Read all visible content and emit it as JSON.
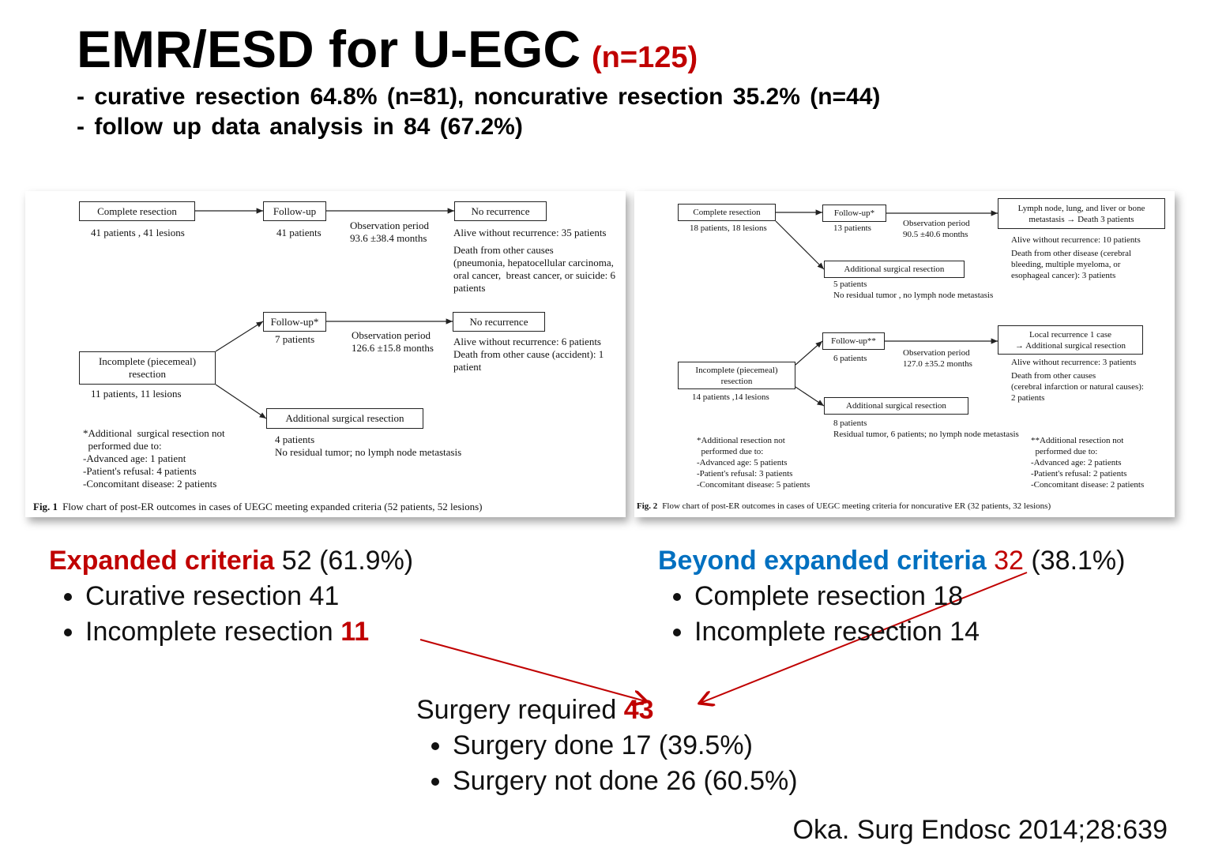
{
  "header": {
    "title": "EMR/ESD for U-EGC",
    "title_note": "(n=125)",
    "lines": [
      "- curative resection 64.8% (n=81), noncurative resection 35.2% (n=44)",
      "- follow up data analysis in 84 (67.2%)"
    ]
  },
  "figures": [
    {
      "boxes": [
        [
          "Complete resection"
        ],
        [
          "Follow-up"
        ],
        [
          "No recurrence"
        ],
        [
          "Follow-up*"
        ],
        [
          "No recurrence"
        ],
        [
          "Incomplete (piecemeal)",
          "resection"
        ],
        [
          "Additional surgical resection"
        ]
      ],
      "notes": [
        [
          "41 patients , 41 lesions"
        ],
        [
          "41 patients"
        ],
        [
          "Observation period",
          "93.6 ±38.4 months"
        ],
        [
          "Alive without recurrence: 35 patients"
        ],
        [
          "Death from other causes",
          "(pneumonia, hepatocellular carcinoma,",
          "oral cancer,  breast cancer, or suicide: 6",
          "patients"
        ],
        [
          "7 patients"
        ],
        [
          "Observation period",
          "126.6 ±15.8 months"
        ],
        [
          "Alive without recurrence: 6 patients",
          "Death from other cause (accident): 1",
          "patient"
        ],
        [
          "11 patients, 11 lesions"
        ],
        [
          "4 patients",
          "No residual tumor; no lymph node metastasis"
        ],
        [
          "*Additional  surgical resection not",
          "  performed due to:",
          "-Advanced age: 1 patient",
          "-Patient's refusal: 4 patients",
          "-Concomitant disease: 2 patients"
        ]
      ],
      "caption": {
        "label": "Fig. 1",
        "text": "Flow chart of post-ER outcomes in cases of UEGC meeting expanded criteria (52 patients, 52 lesions)"
      }
    },
    {
      "boxes": [
        [
          "Complete resection"
        ],
        [
          "Follow-up*"
        ],
        [
          "Lymph node, lung, and liver or bone",
          "metastasis → Death 3 patients"
        ],
        [
          "Additional surgical resection"
        ],
        [
          "Follow-up**"
        ],
        [
          "Local recurrence 1 case",
          "→ Additional surgical resection"
        ],
        [
          "Incomplete (piecemeal)",
          "resection"
        ],
        [
          "Additional surgical resection"
        ]
      ],
      "notes": [
        [
          "18 patients, 18 lesions"
        ],
        [
          "13 patients"
        ],
        [
          "Observation period",
          "90.5 ±40.6 months"
        ],
        [
          "Alive without recurrence: 10 patients"
        ],
        [
          "Death from other disease (cerebral",
          "bleeding, multiple myeloma, or",
          "esophageal cancer): 3 patients"
        ],
        [
          "5 patients",
          "No residual tumor , no lymph node metastasis"
        ],
        [
          "6 patients"
        ],
        [
          "Observation period",
          "127.0 ±35.2 months"
        ],
        [
          "Alive without recurrence: 3 patients"
        ],
        [
          "Death from other causes",
          "(cerebral infarction or natural causes):",
          "2 patients"
        ],
        [
          "14 patients ,14 lesions"
        ],
        [
          "8 patients",
          "Residual tumor, 6 patients; no lymph node metastasis"
        ],
        [
          "*Additional resection not",
          "  performed due to:",
          "-Advanced age: 5 patients",
          "-Patient's refusal: 3 patients",
          "-Concomitant disease: 5 patients"
        ],
        [
          "**Additional resection not",
          "  performed due to:",
          "-Advanced age: 2 patients",
          "-Patient's refusal: 2 patients",
          "-Concomitant disease: 2 patients"
        ]
      ],
      "caption": {
        "label": "Fig. 2",
        "text": "Flow chart of post-ER outcomes in cases of UEGC meeting criteria for noncurative ER (32 patients, 32 lesions)"
      }
    }
  ],
  "expanded": {
    "heading": "Expanded criteria",
    "value": "52",
    "note": "(61.9%)",
    "items": [
      {
        "text": "Curative resection 41"
      },
      {
        "text": "Incomplete resection",
        "highlight": "11"
      }
    ]
  },
  "beyond": {
    "heading": "Beyond expanded criteria",
    "value": "32",
    "note": "(38.1%)",
    "items": [
      {
        "text": "Complete resection 18"
      },
      {
        "text": "Incomplete resection 14"
      }
    ]
  },
  "surgery": {
    "heading": "Surgery required",
    "value": "43",
    "items": [
      {
        "text": "Surgery done 17 (39.5%)"
      },
      {
        "text": "Surgery not done 26 (60.5%)"
      }
    ]
  },
  "citation": "Oka. Surg Endosc 2014;28:639"
}
